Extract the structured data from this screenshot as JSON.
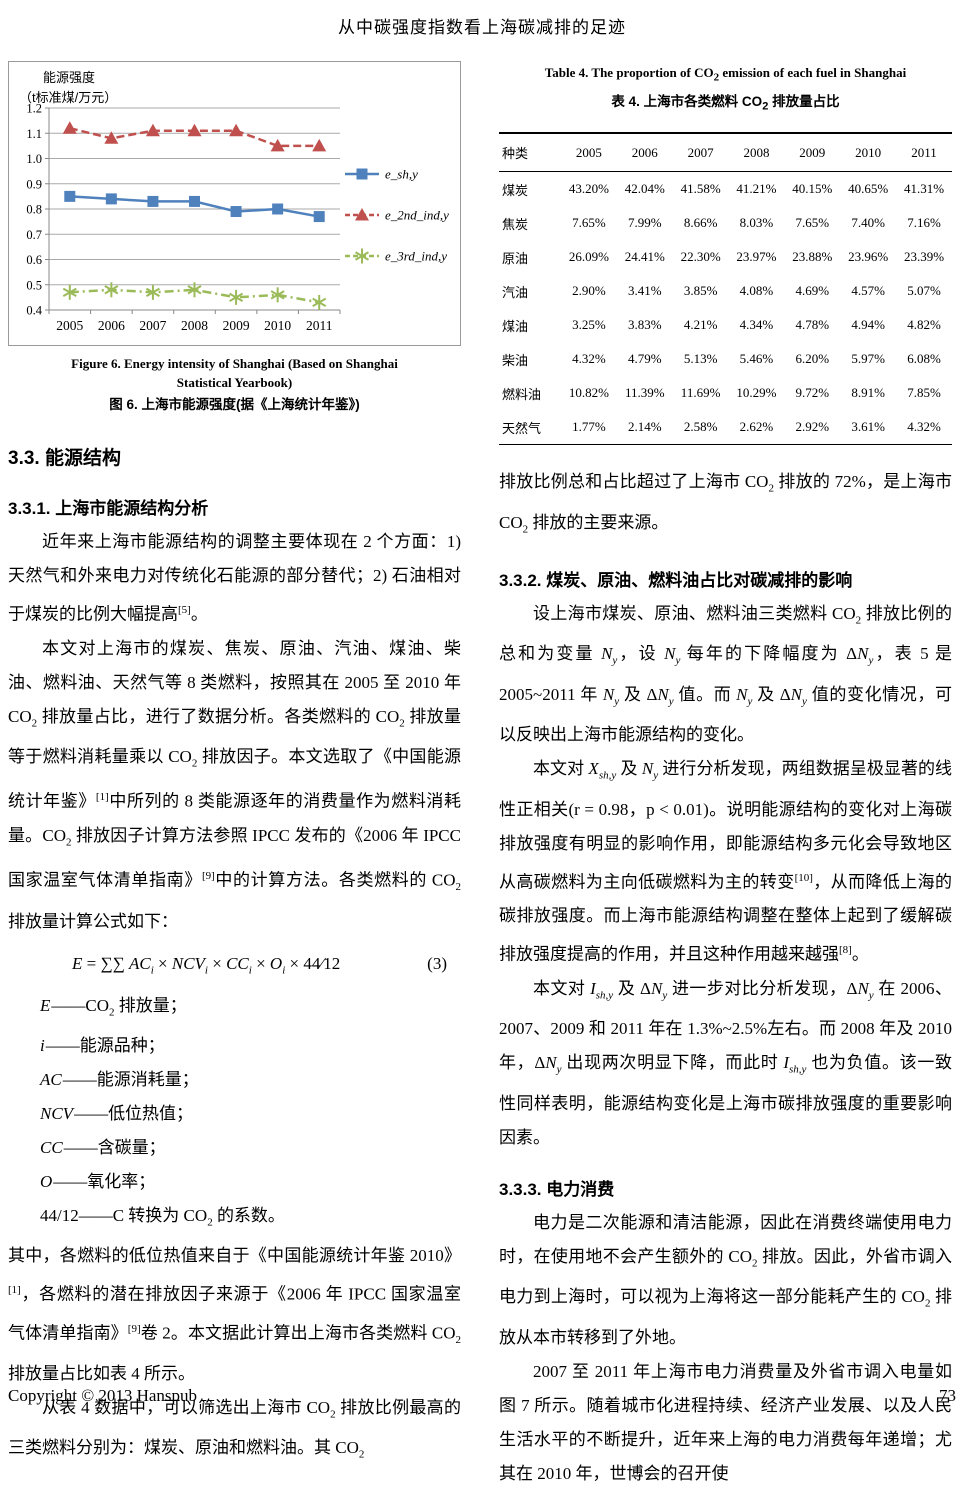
{
  "page": {
    "header_title": "从中碳强度指数看上海碳减排的足迹",
    "footer_copyright": "Copyright © 2013 Hanspub",
    "page_number": "73"
  },
  "figure6": {
    "caption_en_line1": "Figure 6. Energy intensity of Shanghai (Based on Shanghai",
    "caption_en_line2": "Statistical Yearbook)",
    "caption_zh": "图 6. 上海市能源强度(据《上海统计年鉴》)"
  },
  "chart_data": {
    "type": "line",
    "title": "",
    "ylabel_line1": "能源强度",
    "ylabel_line2": "（t标准煤/万元）",
    "x": [
      2005,
      2006,
      2007,
      2008,
      2009,
      2010,
      2011
    ],
    "series": [
      {
        "name": "e_sh,y",
        "color": "#4F81BD",
        "dash": "solid",
        "marker": "square",
        "values": [
          0.85,
          0.84,
          0.83,
          0.83,
          0.79,
          0.8,
          0.77
        ]
      },
      {
        "name": "e_2nd_ind,y",
        "color": "#C0504D",
        "dash": "dashed",
        "marker": "triangle",
        "values": [
          1.12,
          1.08,
          1.11,
          1.11,
          1.11,
          1.05,
          1.05
        ]
      },
      {
        "name": "e_3rd_ind,y",
        "color": "#9BBB59",
        "dash": "dashdot",
        "marker": "star",
        "values": [
          0.47,
          0.48,
          0.47,
          0.48,
          0.45,
          0.46,
          0.43
        ]
      }
    ],
    "ylim": [
      0.4,
      1.2
    ],
    "ytick_step": 0.1,
    "grid": true,
    "legend_position": "right"
  },
  "table4": {
    "title_en": "Table 4. The proportion of CO_{2} emission of each fuel in Shanghai",
    "title_zh": "表 4. 上海市各类燃料 CO_{2} 排放量占比",
    "col_headers": [
      "种类",
      "2005",
      "2006",
      "2007",
      "2008",
      "2009",
      "2010",
      "2011"
    ],
    "rows": [
      {
        "label": "煤炭",
        "values": [
          "43.20%",
          "42.04%",
          "41.58%",
          "41.21%",
          "40.15%",
          "40.65%",
          "41.31%"
        ]
      },
      {
        "label": "焦炭",
        "values": [
          "7.65%",
          "7.99%",
          "8.66%",
          "8.03%",
          "7.65%",
          "7.40%",
          "7.16%"
        ]
      },
      {
        "label": "原油",
        "values": [
          "26.09%",
          "24.41%",
          "22.30%",
          "23.97%",
          "23.88%",
          "23.96%",
          "23.39%"
        ]
      },
      {
        "label": "汽油",
        "values": [
          "2.90%",
          "3.41%",
          "3.85%",
          "4.08%",
          "4.69%",
          "4.57%",
          "5.07%"
        ]
      },
      {
        "label": "煤油",
        "values": [
          "3.25%",
          "3.83%",
          "4.21%",
          "4.34%",
          "4.78%",
          "4.94%",
          "4.82%"
        ]
      },
      {
        "label": "柴油",
        "values": [
          "4.32%",
          "4.79%",
          "5.13%",
          "5.46%",
          "6.20%",
          "5.97%",
          "6.08%"
        ]
      },
      {
        "label": "燃料油",
        "values": [
          "10.82%",
          "11.39%",
          "11.69%",
          "10.29%",
          "9.72%",
          "8.91%",
          "7.85%"
        ]
      },
      {
        "label": "天然气",
        "values": [
          "1.77%",
          "2.14%",
          "2.58%",
          "2.62%",
          "2.92%",
          "3.61%",
          "4.32%"
        ]
      }
    ]
  },
  "sections": {
    "s33": "3.3. 能源结构",
    "s331": "3.3.1. 上海市能源结构分析",
    "s332": "3.3.2. 煤炭、原油、燃料油占比对碳减排的影响",
    "s333": "3.3.3. 电力消费"
  },
  "left_column": {
    "p1": "近年来上海市能源结构的调整主要体现在 2 个方面：1) 天然气和外来电力对传统化石能源的部分替代；2) 石油相对于煤炭的比例大幅提高^{[5]}。",
    "p2": "本文对上海市的煤炭、焦炭、原油、汽油、煤油、柴油、燃料油、天然气等 8 类燃料，按照其在 2005 至 2010 年 CO_{2} 排放量占比，进行了数据分析。各类燃料的 CO_{2} 排放量等于燃料消耗量乘以 CO_{2} 排放因子。本文选取了《中国能源统计年鉴》^{[1]}中所列的 8 类能源逐年的消费量作为燃料消耗量。CO_{2} 排放因子计算方法参照 IPCC 发布的《2006 年 IPCC 国家温室气体清单指南》^{[9]}中的计算方法。各类燃料的 CO_{2} 排放量计算公式如下：",
    "formula": "*E* = ∑∑ *AC*_{*i*} × *NCV*_{*i*} × *CC*_{*i*} × *O*_{*i*} × 44∕12",
    "formula_number": "(3)",
    "definitions": [
      "*E*——CO_{2} 排放量；",
      "*i*——能源品种；",
      "*AC*——能源消耗量；",
      "*NCV*——低位热值；",
      "*CC*——含碳量；",
      "*O*——氧化率；",
      "44/12——C 转换为 CO_{2} 的系数。"
    ],
    "p3": "其中，各燃料的低位热值来自于《中国能源统计年鉴 2010》^{[1]}，各燃料的潜在排放因子来源于《2006 年 IPCC 国家温室气体清单指南》^{[9]}卷 2。本文据此计算出上海市各类燃料 CO_{2} 排放量占比如表 4 所示。",
    "p4": "从表 4 数据中，可以筛选出上海市 CO_{2} 排放比例最高的三类燃料分别为：煤炭、原油和燃料油。其 CO_{2}"
  },
  "right_column": {
    "p1": "排放比例总和占比超过了上海市 CO_{2} 排放的 72%，是上海市 CO_{2} 排放的主要来源。",
    "p2": "设上海市煤炭、原油、燃料油三类燃料 CO_{2} 排放比例的总和为变量 *N*_{*y*}，设 *N*_{*y*} 每年的下降幅度为 Δ*N*_{*y*}，表 5 是 2005~2011 年 *N*_{*y*} 及 Δ*N*_{*y*} 值。而 *N*_{*y*} 及 Δ*N*_{*y*} 值的变化情况，可以反映出上海市能源结构的变化。",
    "p3": "本文对 *X*_{*sh*,*y*} 及 *N*_{*y*} 进行分析发现，两组数据呈极显著的线性正相关(r = 0.98，p < 0.01)。说明能源结构的变化对上海碳排放强度有明显的影响作用，即能源结构多元化会导致地区从高碳燃料为主向低碳燃料为主的转变^{[10]}，从而降低上海的碳排放强度。而上海市能源结构调整在整体上起到了缓解碳排放强度提高的作用，并且这种作用越来越强^{[8]}。",
    "p4": "本文对 *I*_{*sh*,*y*} 及 Δ*N*_{*y*} 进一步对比分析发现，Δ*N*_{*y*} 在 2006、2007、2009 和 2011 年在 1.3%~2.5%左右。而 2008 年及 2010 年，Δ*N*_{*y*} 出现两次明显下降，而此时 *I*_{*sh*,*y*} 也为负值。该一致性同样表明，能源结构变化是上海市碳排放强度的重要影响因素。",
    "p5": "电力是二次能源和清洁能源，因此在消费终端使用电力时，在使用地不会产生额外的 CO_{2} 排放。因此，外省市调入电力到上海时，可以视为上海将这一部分能耗产生的 CO_{2} 排放从本市转移到了外地。",
    "p6": "2007 至 2011 年上海市电力消费量及外省市调入电量如图 7 所示。随着城市化进程持续、经济产业发展、以及人民生活水平的不断提升，近年来上海的电力消费每年递增；尤其在 2010 年，世博会的召开使"
  }
}
